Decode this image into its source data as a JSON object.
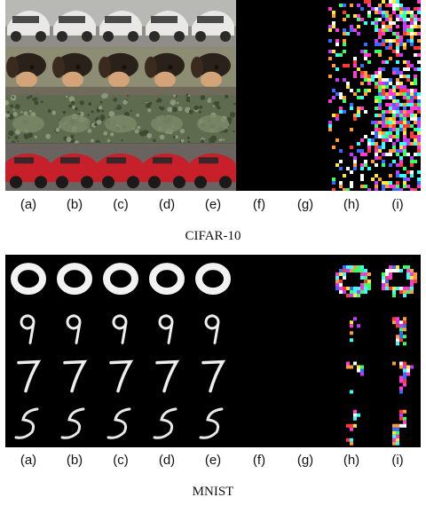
{
  "figure": {
    "column_labels": [
      "(a)",
      "(b)",
      "(c)",
      "(d)",
      "(e)",
      "(f)",
      "(g)",
      "(h)",
      "(i)"
    ],
    "cifar": {
      "caption": "CIFAR-10",
      "rows": [
        {
          "subject": "car-white"
        },
        {
          "subject": "dog"
        },
        {
          "subject": "frog"
        },
        {
          "subject": "car-red"
        }
      ]
    },
    "mnist": {
      "caption": "MNIST",
      "digits": [
        "0",
        "9",
        "7",
        "5"
      ]
    }
  }
}
